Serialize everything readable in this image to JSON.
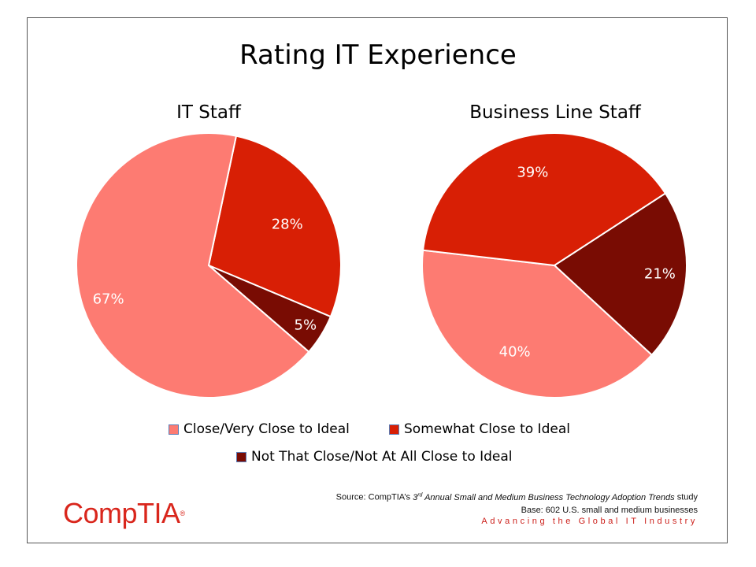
{
  "title": "Rating IT Experience",
  "colors": {
    "close": "#fd7b72",
    "somewhat": "#d81f05",
    "not_close": "#790c03",
    "brand": "#d9261c"
  },
  "chart_data": [
    {
      "type": "pie",
      "title": "IT Staff",
      "categories": [
        "Close/Very Close to Ideal",
        "Somewhat Close to Ideal",
        "Not That Close/Not At All Close to Ideal"
      ],
      "values": [
        67,
        28,
        5
      ],
      "labels": [
        "67%",
        "28%",
        "5%"
      ]
    },
    {
      "type": "pie",
      "title": "Business Line Staff",
      "categories": [
        "Close/Very Close to Ideal",
        "Somewhat Close to Ideal",
        "Not That Close/Not At All Close to Ideal"
      ],
      "values": [
        40,
        39,
        21
      ],
      "labels": [
        "40%",
        "39%",
        "21%"
      ]
    }
  ],
  "legend": [
    {
      "label": "Close/Very Close to Ideal"
    },
    {
      "label": "Somewhat Close to Ideal"
    },
    {
      "label": "Not That Close/Not At All Close to Ideal"
    }
  ],
  "source": {
    "prefix": "Source: CompTIA’s ",
    "ordinal": "3",
    "ordinal_suffix": "rd",
    "study_title": " Annual Small and Medium Business Technology Adoption Trends",
    "suffix": " study",
    "base": "Base: 602 U.S. small and medium businesses"
  },
  "tagline": "Advancing the Global IT Industry",
  "logo": {
    "text": "CompTIA",
    "mark": "®"
  }
}
